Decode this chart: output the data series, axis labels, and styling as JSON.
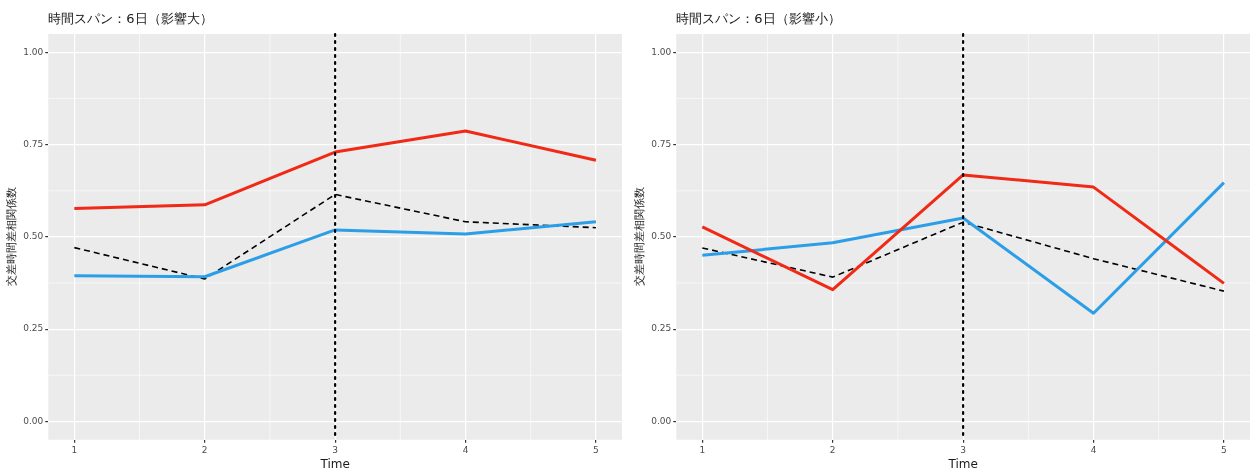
{
  "chart_data": [
    {
      "type": "line",
      "title": "時間スパン：6日（影響大）",
      "xlabel": "Time",
      "ylabel": "交差時間差相関係数",
      "x": [
        1,
        2,
        3,
        4,
        5
      ],
      "series": [
        {
          "color": "#f02a16",
          "values": [
            0.577,
            0.587,
            0.73,
            0.787,
            0.708
          ],
          "line_style": "solid"
        },
        {
          "color": "#2c9ee8",
          "values": [
            0.395,
            0.392,
            0.519,
            0.508,
            0.541
          ],
          "line_style": "solid"
        },
        {
          "color": "#000000",
          "values": [
            0.471,
            0.386,
            0.615,
            0.541,
            0.525
          ],
          "line_style": "dashed"
        }
      ],
      "xlim": [
        0.8,
        5.2
      ],
      "xticks": [
        1,
        2,
        3,
        4,
        5
      ],
      "ylim": [
        -0.05,
        1.05
      ],
      "yticks": [
        {
          "value": 0,
          "label": "0.00"
        },
        {
          "value": 0.25,
          "label": "0.25"
        },
        {
          "value": 0.5,
          "label": "0.50"
        },
        {
          "value": 0.75,
          "label": "0.75"
        },
        {
          "value": 1,
          "label": "1.00"
        }
      ],
      "grid": true,
      "ref_lines": [
        {
          "axis": "x",
          "value": 3,
          "color": "#000000",
          "line_style": "dotted"
        }
      ]
    },
    {
      "type": "line",
      "title": "時間スパン：6日（影響小）",
      "xlabel": "Time",
      "ylabel": "交差時間差相関係数",
      "x": [
        1,
        2,
        3,
        4,
        5
      ],
      "series": [
        {
          "color": "#f02a16",
          "values": [
            0.527,
            0.357,
            0.668,
            0.635,
            0.374
          ],
          "line_style": "solid"
        },
        {
          "color": "#2c9ee8",
          "values": [
            0.45,
            0.484,
            0.551,
            0.293,
            0.647
          ],
          "line_style": "solid"
        },
        {
          "color": "#000000",
          "values": [
            0.47,
            0.391,
            0.54,
            0.441,
            0.353
          ],
          "line_style": "dashed"
        }
      ],
      "xlim": [
        0.8,
        5.2
      ],
      "xticks": [
        1,
        2,
        3,
        4,
        5
      ],
      "ylim": [
        -0.05,
        1.05
      ],
      "yticks": [
        {
          "value": 0,
          "label": "0.00"
        },
        {
          "value": 0.25,
          "label": "0.25"
        },
        {
          "value": 0.5,
          "label": "0.50"
        },
        {
          "value": 0.75,
          "label": "0.75"
        },
        {
          "value": 1,
          "label": "1.00"
        }
      ],
      "grid": true,
      "ref_lines": [
        {
          "axis": "x",
          "value": 3,
          "color": "#000000",
          "line_style": "dotted"
        }
      ]
    }
  ]
}
